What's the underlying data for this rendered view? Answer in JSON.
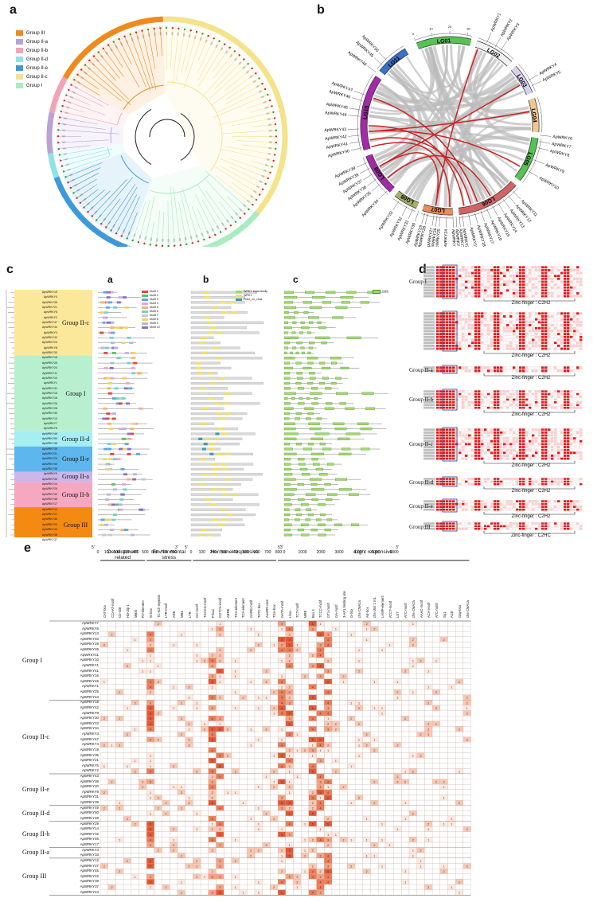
{
  "panels": {
    "a": "a",
    "b": "b",
    "c": "c",
    "d": "d",
    "e": "e"
  },
  "panel_a": {
    "legend": [
      {
        "label": "Group III",
        "color": "#f08a1c"
      },
      {
        "label": "Group II-a",
        "color": "#b9a2d6"
      },
      {
        "label": "Group II-b",
        "color": "#f3a3b6"
      },
      {
        "label": "Group II-d",
        "color": "#8fe3e6"
      },
      {
        "label": "Group II-e",
        "color": "#3d9ad8"
      },
      {
        "label": "Group II-c",
        "color": "#f5e38a"
      },
      {
        "label": "Group I",
        "color": "#a8ecc0"
      }
    ]
  },
  "panel_b": {
    "chromosomes": [
      "LG01",
      "LG02",
      "LG03",
      "LG04",
      "LG05",
      "LG06",
      "LG07",
      "LG08",
      "LG09",
      "LG10",
      "LG11"
    ],
    "scale_ticks": [
      "0",
      "10",
      "20",
      "30"
    ],
    "genes": [
      "ApWRKY1",
      "ApWRKY2",
      "ApWRKY3",
      "ApWRKY4",
      "ApWRKY5",
      "ApWRKY6",
      "ApWRKY7",
      "ApWRKY8",
      "ApWRKY9",
      "ApWRKY10",
      "ApWRKY11",
      "ApWRKY12",
      "ApWRKY13",
      "ApWRKY14",
      "ApWRKY15",
      "ApWRKY16",
      "ApWRKY17",
      "ApWRKY18",
      "ApWRKY19",
      "ApWRKY20",
      "ApWRKY21",
      "ApWRKY22",
      "ApWRKY23",
      "ApWRKY24",
      "ApWRKY25",
      "ApWRKY26",
      "ApWRKY27",
      "ApWRKY28",
      "ApWRKY29",
      "ApWRKY30",
      "ApWRKY31",
      "ApWRKY32",
      "ApWRKY33",
      "ApWRKY34",
      "ApWRKY35",
      "ApWRKY36",
      "ApWRKY37",
      "ApWRKY38",
      "ApWRKY39",
      "ApWRKY40",
      "ApWRKY41",
      "ApWRKY42",
      "ApWRKY43",
      "ApWRKY44",
      "ApWRKY45",
      "ApWRKY46",
      "ApWRKY47",
      "ApWRKY48",
      "ApWRKY49",
      "ApWRKY50"
    ]
  },
  "panel_c": {
    "groups": [
      {
        "label": "Group II-c",
        "color": "#fbe89a"
      },
      {
        "label": "Group I",
        "color": "#b8f0cf"
      },
      {
        "label": "Group II-d",
        "color": "#a6eef2"
      },
      {
        "label": "Group II-e",
        "color": "#5db6ee"
      },
      {
        "label": "Group II-a",
        "color": "#cdb6ea"
      },
      {
        "label": "Group II-b",
        "color": "#f5a8bf"
      },
      {
        "label": "Group III",
        "color": "#f58a12"
      }
    ],
    "genes": [
      "ApWRKY19",
      "ApWRKY4",
      "ApWRKY35",
      "ApWRKY21",
      "ApWRKY5",
      "ApWRKY2",
      "ApWRKY47",
      "ApWRKY34",
      "ApWRKY3",
      "ApWRKY42",
      "ApWRKY23",
      "ApWRKY8",
      "ApWRKY30",
      "ApWRKY18",
      "ApWRKY25",
      "ApWRKY24",
      "ApWRKY11",
      "ApWRKY10",
      "ApWRKY1",
      "ApWRKY41",
      "ApWRKY15",
      "ApWRKY16",
      "ApWRKY26",
      "ApWRKY28",
      "ApWRKY40",
      "ApWRKY13",
      "ApWRKY7",
      "ApWRKY6",
      "ApWRKY49",
      "ApWRKY50",
      "ApWRKY48",
      "ApWRKY39",
      "ApWRKY31",
      "ApWRKY20",
      "ApWRKY43",
      "ApWRKY36",
      "ApWRKY9",
      "ApWRKY33",
      "ApWRKY14",
      "ApWRKY29",
      "ApWRKY32",
      "ApWRKY46",
      "ApWRKY17",
      "ApWRKY12",
      "ApWRKY27",
      "ApWRKY45",
      "ApWRKY22",
      "ApWRKY44",
      "ApWRKY38",
      "ApWRKY37"
    ],
    "sub_a": {
      "label": "a",
      "motifs": [
        "Motif 1",
        "Motif 2",
        "Motif 3",
        "Motif 4",
        "Motif 5",
        "Motif 6",
        "Motif 7",
        "Motif 8",
        "Motif 9",
        "Motif 10"
      ],
      "ticks": [
        "0",
        "100",
        "200",
        "300",
        "400",
        "500",
        "600",
        "700",
        "800"
      ],
      "ends": [
        "5'",
        "3'"
      ]
    },
    "sub_b": {
      "label": "b",
      "legend": [
        "WRKY superfamily",
        "WRKY",
        "Plant_zn_clust"
      ],
      "ticks": [
        "0",
        "100",
        "200",
        "300",
        "400",
        "500",
        "600",
        "700",
        "800"
      ],
      "ends": [
        "5'",
        "3'"
      ]
    },
    "sub_c": {
      "label": "c",
      "legend": [
        "CDS"
      ],
      "ticks": [
        "0",
        "1000",
        "2000",
        "3000",
        "4000",
        "5000",
        "6000"
      ],
      "ends": [
        "5'",
        "3'"
      ]
    }
  },
  "panel_d": {
    "rows": [
      {
        "group": "Group I",
        "zf": "Zinc-finger : C2H2"
      },
      {
        "group": "",
        "zf": "Zinc-finger : C2H2"
      },
      {
        "group": "Group II-a",
        "zf": "Zinc-finger : C2H2"
      },
      {
        "group": "Group II-b",
        "zf": "Zinc-finger : C2H2"
      },
      {
        "group": "Group II-c",
        "zf": "Zinc-finger : C2H2"
      },
      {
        "group": "Group II-d",
        "zf": "Zinc-finger : C2H2"
      },
      {
        "group": "Group II-e",
        "zf": "Zinc-finger : C2H2"
      },
      {
        "group": "Group III",
        "zf": "Zinc-finger : C2HC"
      }
    ]
  },
  "panel_e": {
    "categories": [
      "Development related",
      "Envrionmental stress",
      "Hormone responsive",
      "Light responsive"
    ],
    "columns": [
      "CAT-box",
      "CCAAT-motif",
      "O2-site",
      "HD-Zip 1",
      "MBSI",
      "RY-element",
      "W box",
      "TC-rich repeats",
      "LTR-motif",
      "ARE",
      "MBS",
      "LTR",
      "GC-motif",
      "TGACG-motif",
      "P-box",
      "CGTCA-motif",
      "ABRE",
      "TGA-element",
      "TCA-element",
      "GARE-motif",
      "TATC-box",
      "AuxRR-core",
      "TGA-box",
      "GATA-motif",
      "I-box",
      "TCT-motif",
      "MRE",
      "Box 4",
      "TCCC-motif",
      "GT1-motif",
      "GA-motif",
      "3-AF1 binding site",
      "G-box",
      "chs-CMA1a",
      "AE-box",
      "chs-Unit 1 m1",
      "LAMP-element",
      "ATCT-motif",
      "LS7",
      "ATC-motif",
      "chs-CMA2a",
      "AAAC-motif",
      "ACA-motif",
      "ATC-motif",
      "Sp1",
      "ACE",
      "Gap-box",
      "chs-CMA1a"
    ],
    "groups": [
      {
        "label": "Group I",
        "genes": [
          "ApWRKY7",
          "ApWRKY6",
          "ApWRKY13",
          "ApWRKY40",
          "ApWRKY28",
          "ApWRKY26",
          "ApWRKY11",
          "ApWRKY10",
          "ApWRKY1",
          "ApWRKY41",
          "ApWRKY16",
          "ApWRKY15",
          "ApWRKY1",
          "ApWRKY25",
          "ApWRKY24"
        ]
      },
      {
        "label": "Group II-c",
        "genes": [
          "ApWRKY18",
          "ApWRKY42",
          "ApWRKY8",
          "ApWRKY30",
          "ApWRKY23",
          "ApWRKY34",
          "ApWRKY3",
          "ApWRKY47",
          "ApWRKY4",
          "ApWRKY19",
          "ApWRKY35",
          "ApWRKY21",
          "ApWRKY5",
          "ApWRKY2"
        ]
      },
      {
        "label": "Group II-e",
        "genes": [
          "ApWRKY43",
          "ApWRKY36",
          "ApWRKY20",
          "ApWRKY9",
          "ApWRKY31",
          "ApWRKY39"
        ]
      },
      {
        "label": "Group II-d",
        "genes": [
          "ApWRKY49",
          "ApWRKY50",
          "ApWRKY48"
        ]
      },
      {
        "label": "Group II-b",
        "genes": [
          "ApWRKY29",
          "ApWRKY14",
          "ApWRKY32",
          "ApWRKY46",
          "ApWRKY17"
        ]
      },
      {
        "label": "Group II-a",
        "genes": [
          "ApWRKY3",
          "ApWRKY33"
        ]
      },
      {
        "label": "Group III",
        "genes": [
          "ApWRKY12",
          "ApWRKY27",
          "ApWRKY45",
          "ApWRKY22",
          "ApWRKY38",
          "ApWRKY37",
          "ApWRKY44"
        ]
      }
    ]
  },
  "colors": {
    "group3": "#f08a1c",
    "group2a": "#b9a2d6",
    "group2b": "#f3a3b6",
    "group2d": "#8fe3e6",
    "group2e": "#3d9ad8",
    "group2c": "#f5e38a",
    "group1": "#a8ecc0",
    "link_red": "#cc2222",
    "link_grey": "#bbbbbb"
  }
}
